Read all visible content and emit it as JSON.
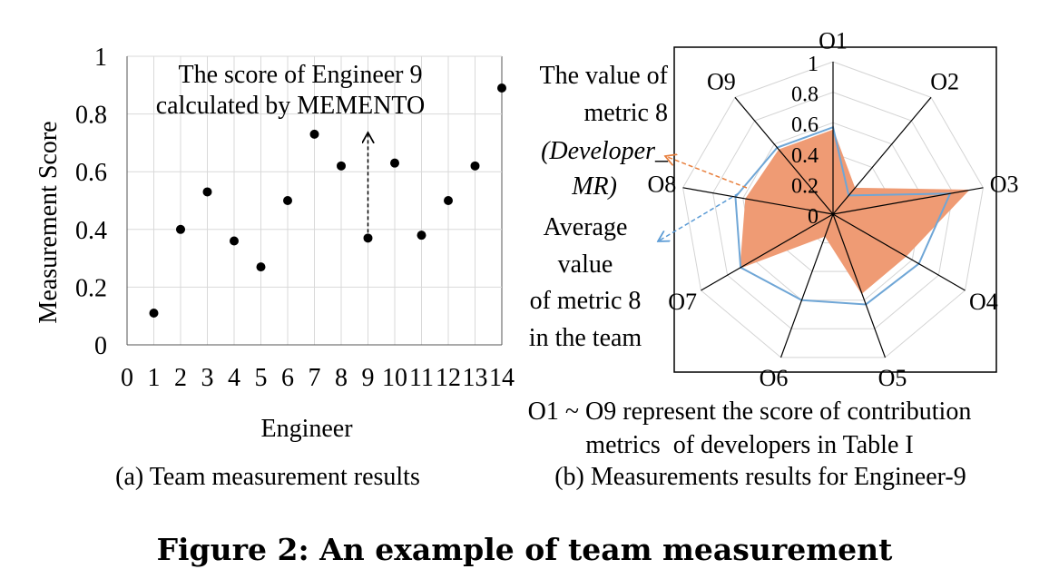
{
  "figure_title": "Figure 2: An example of team measurement",
  "chart_data": [
    {
      "type": "scatter",
      "caption": "(a) Team measurement results",
      "xlabel": "Engineer",
      "ylabel": "Measurement Score",
      "xlim": [
        0,
        14
      ],
      "ylim": [
        0,
        1
      ],
      "x_ticks": [
        "0",
        "1",
        "2",
        "3",
        "4",
        "5",
        "6",
        "7",
        "8",
        "9",
        "10",
        "11",
        "12",
        "13",
        "14"
      ],
      "y_ticks": [
        "0",
        "0.2",
        "0.4",
        "0.6",
        "0.8",
        "1"
      ],
      "grid": true,
      "points": [
        {
          "x": 1,
          "y": 0.11
        },
        {
          "x": 2,
          "y": 0.4
        },
        {
          "x": 3,
          "y": 0.53
        },
        {
          "x": 4,
          "y": 0.36
        },
        {
          "x": 5,
          "y": 0.27
        },
        {
          "x": 6,
          "y": 0.5
        },
        {
          "x": 7,
          "y": 0.73
        },
        {
          "x": 8,
          "y": 0.62
        },
        {
          "x": 9,
          "y": 0.37
        },
        {
          "x": 10,
          "y": 0.63
        },
        {
          "x": 11,
          "y": 0.38
        },
        {
          "x": 12,
          "y": 0.5
        },
        {
          "x": 13,
          "y": 0.62
        },
        {
          "x": 14,
          "y": 0.89
        }
      ],
      "annotation": {
        "line1": "The score of Engineer 9",
        "line2": "calculated by MEMENTO",
        "target_x": 9
      }
    },
    {
      "type": "radar",
      "caption": "(b) Measurements results for Engineer-9",
      "axes": [
        "O1",
        "O2",
        "O3",
        "O4",
        "O5",
        "O6",
        "O7",
        "O8",
        "O9"
      ],
      "rlim": [
        0,
        1
      ],
      "r_ticks": [
        "0",
        "0.2",
        "0.4",
        "0.6",
        "0.8",
        "1"
      ],
      "series": [
        {
          "color": "#EF9B74",
          "style": "filled",
          "values": [
            0.55,
            0.22,
            0.9,
            0.55,
            0.55,
            0.15,
            0.7,
            0.58,
            0.55
          ]
        },
        {
          "color": "#6FA6D6",
          "style": "line",
          "values": [
            0.57,
            0.16,
            0.78,
            0.65,
            0.63,
            0.6,
            0.7,
            0.65,
            0.57
          ]
        }
      ],
      "annotation_value": [
        "The value of",
        "metric 8",
        "(Developer_",
        "MR)"
      ],
      "annotation_average": [
        "Average",
        "value",
        "of metric 8",
        "in the team"
      ],
      "note": [
        "O1 ~ O9 represent the score of contribution",
        "metrics  of developers in Table I"
      ],
      "colors": {
        "value_arrow": "#E8803E",
        "average_arrow": "#5B9BD5"
      }
    }
  ]
}
